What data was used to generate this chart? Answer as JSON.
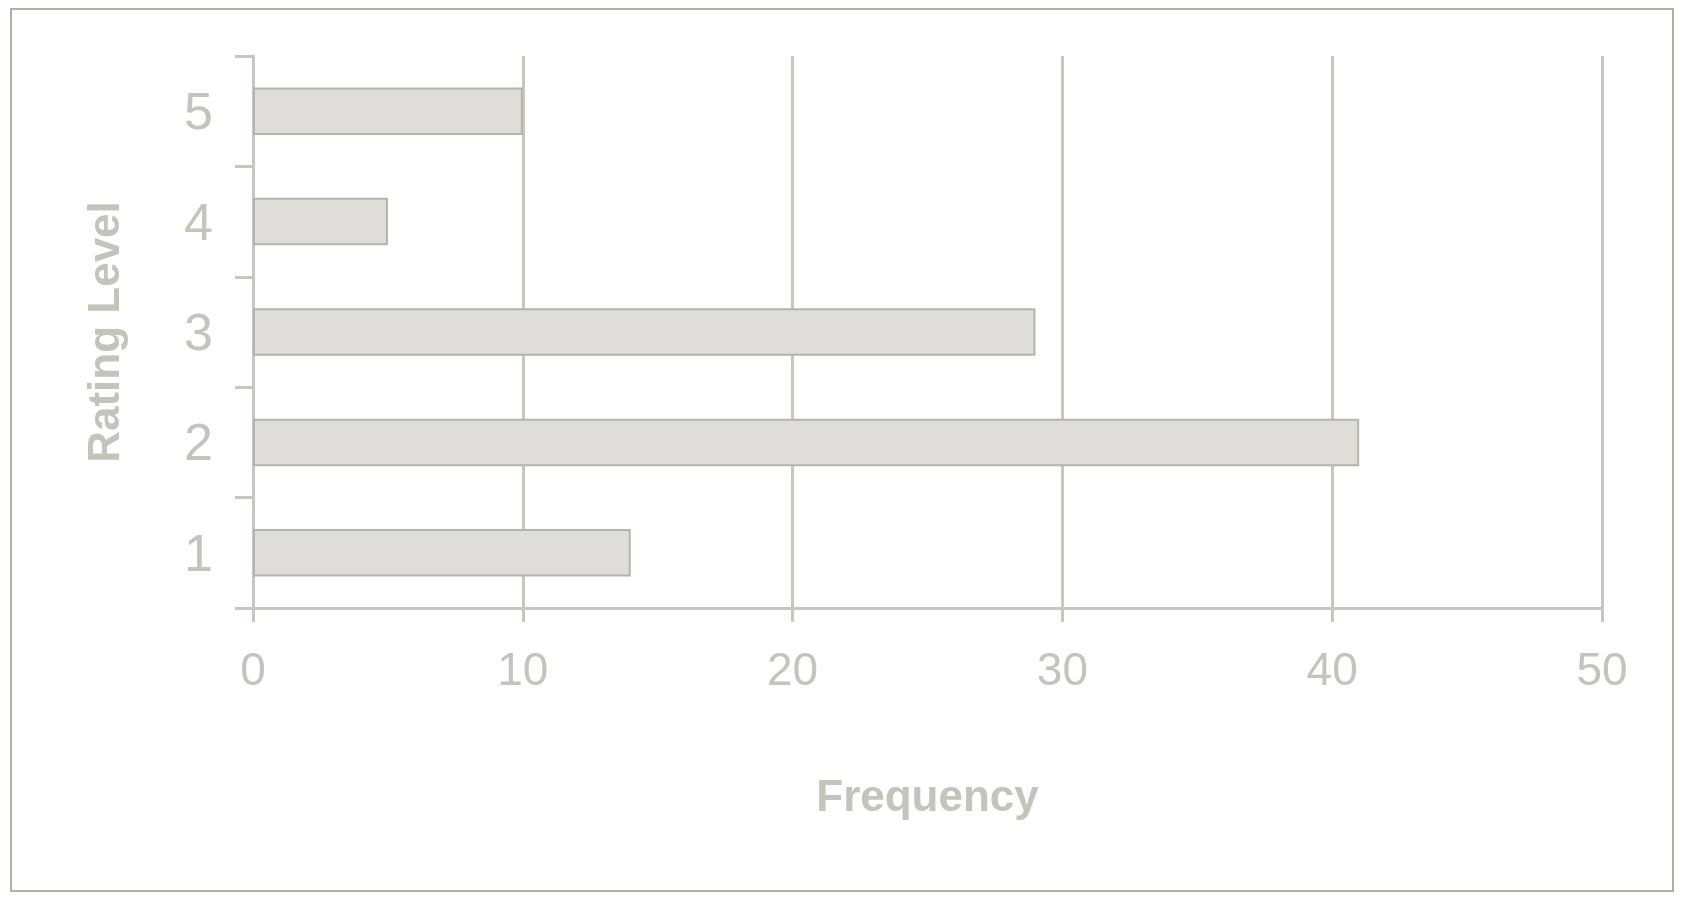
{
  "chart_data": {
    "type": "bar",
    "orientation": "horizontal",
    "categories": [
      "5",
      "4",
      "3",
      "2",
      "1"
    ],
    "values": [
      10,
      5,
      29,
      41,
      14
    ],
    "color": "#deddd9",
    "xlabel": "Frequency",
    "ylabel": "Rating Level",
    "xlim": [
      0,
      50
    ],
    "xticks": [
      0,
      10,
      20,
      30,
      40,
      50
    ],
    "grid": "x"
  }
}
